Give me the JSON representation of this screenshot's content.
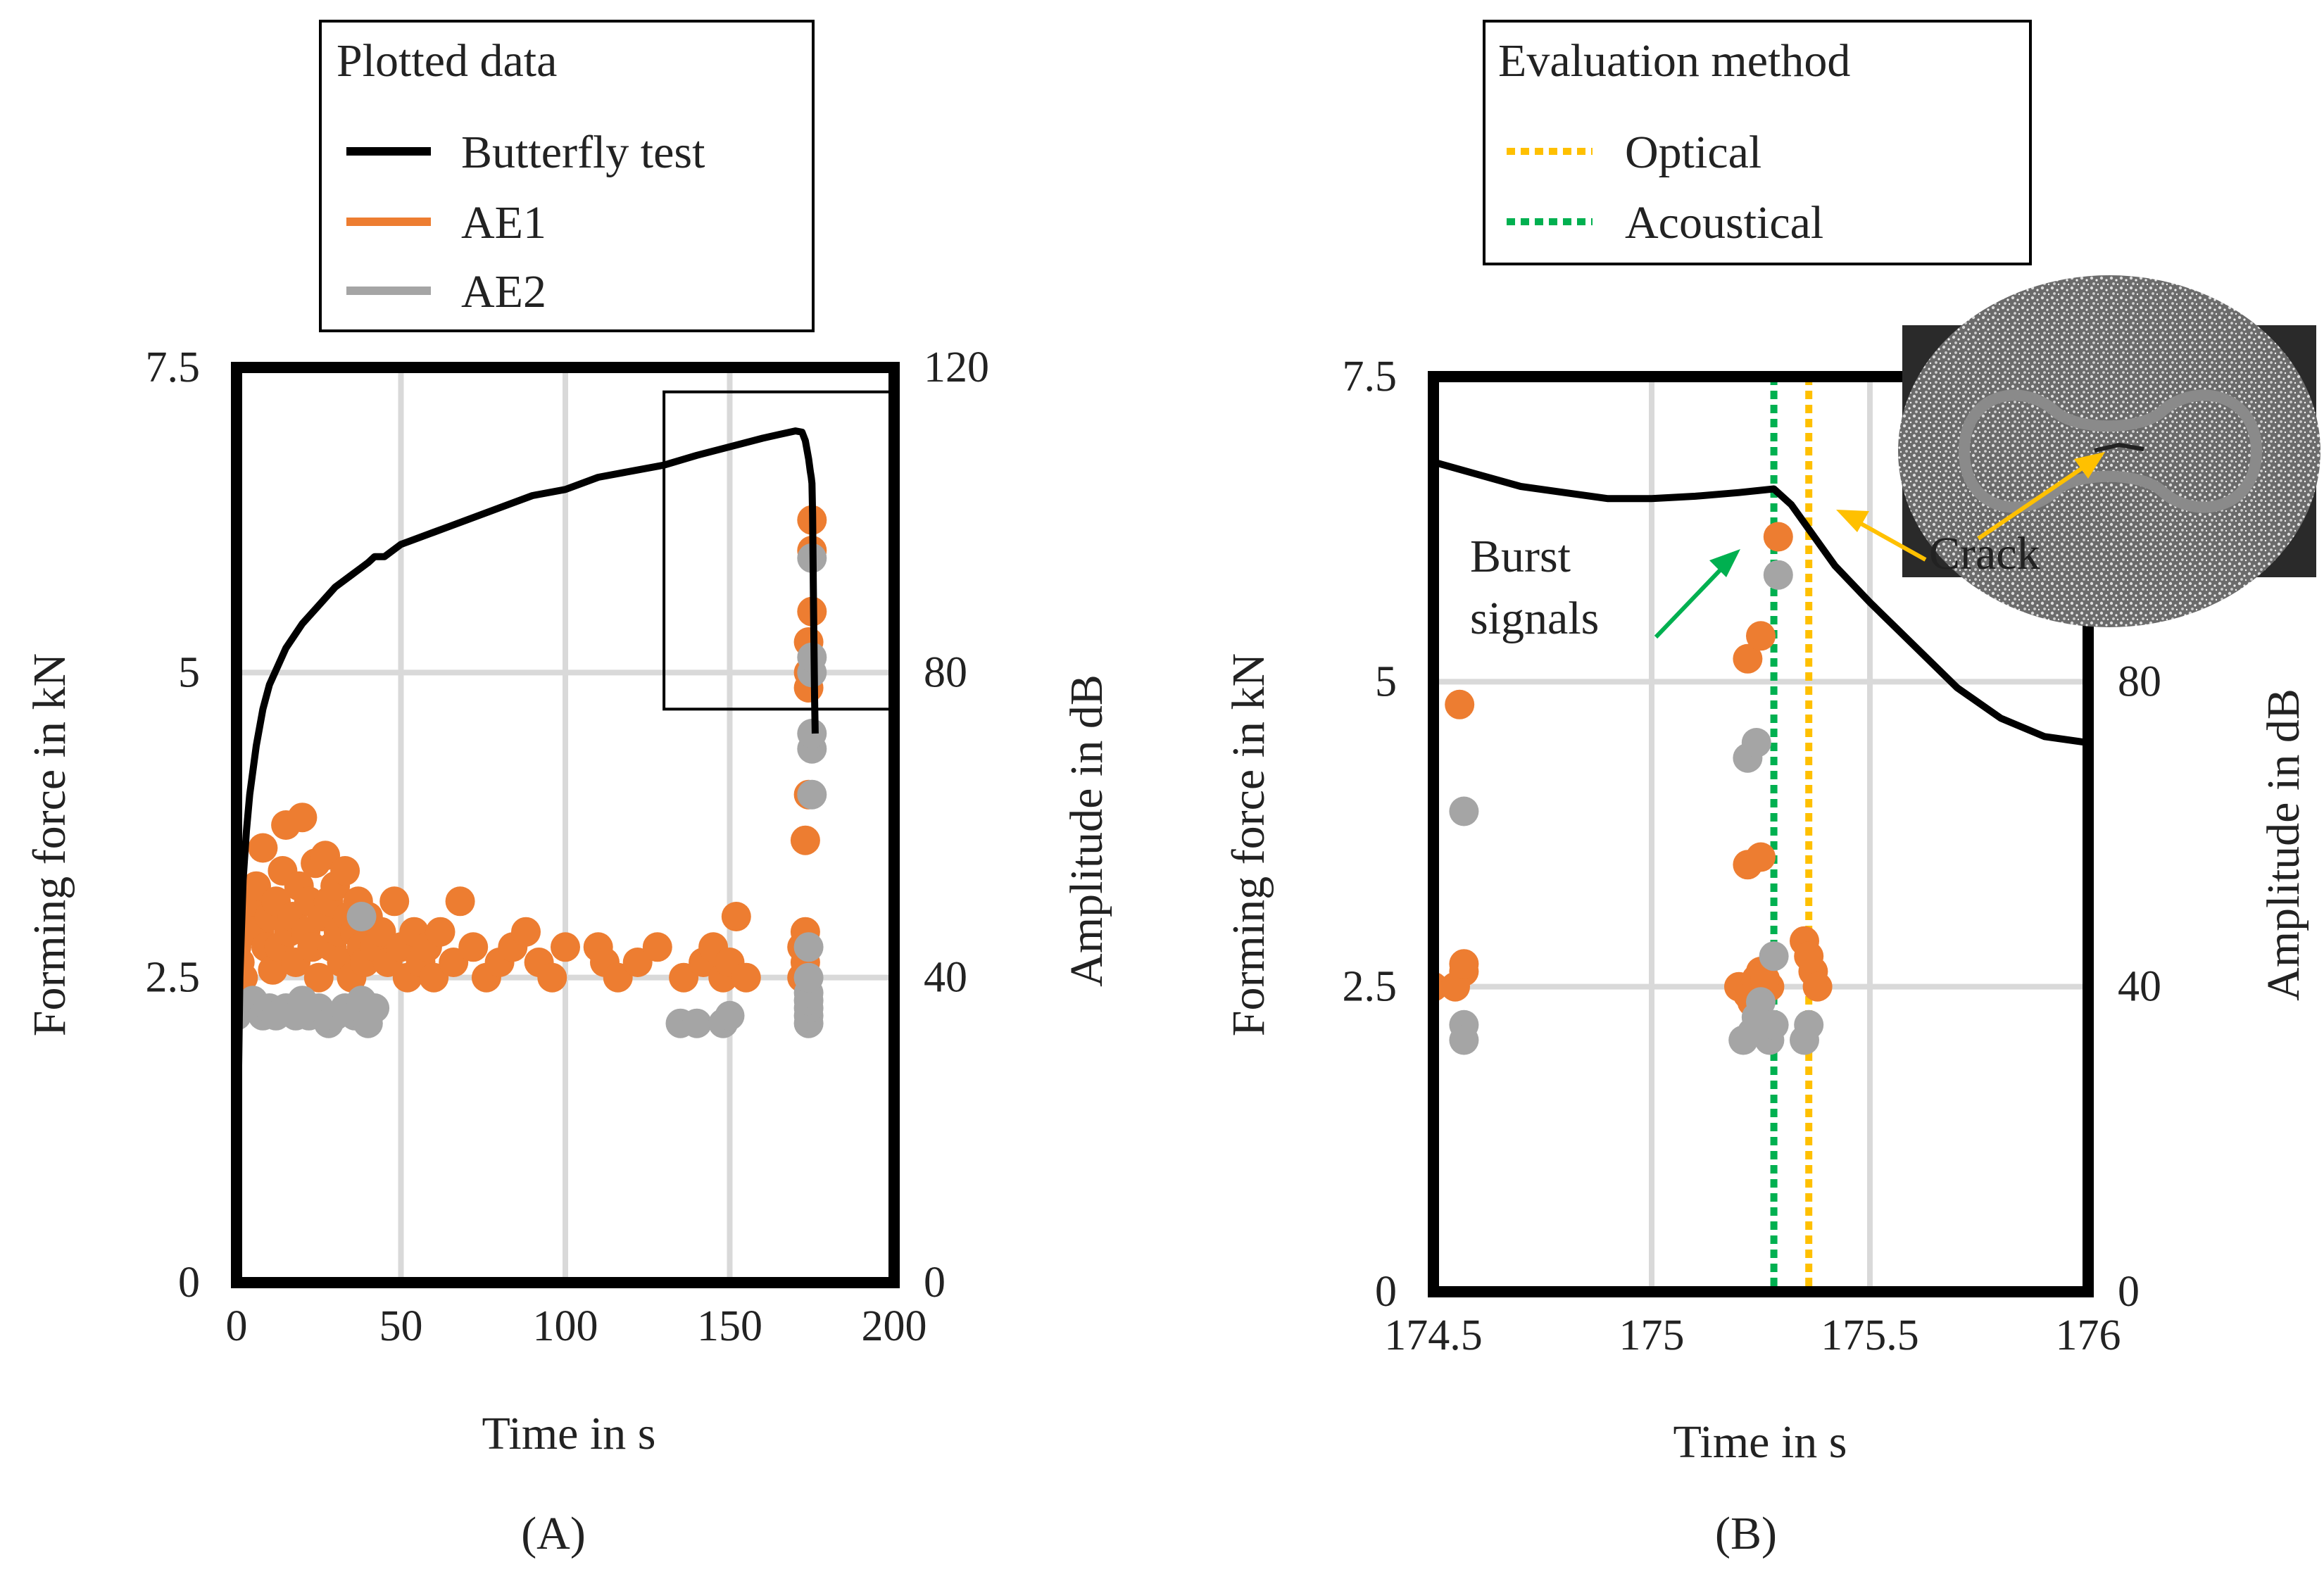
{
  "colors": {
    "force": "#000000",
    "ae1": "#ED7D31",
    "ae2": "#A5A5A5",
    "optical": "#FFC000",
    "acoustical": "#00B050",
    "grid": "#D9D9D9",
    "annotation_green": "#00B050",
    "annotation_gold": "#BF8F00"
  },
  "chart_data": [
    {
      "type": "scatter",
      "panel_label": "(A)",
      "xlabel": "Time in s",
      "ylabel_left": "Forming force in kN",
      "ylabel_right": "Amplitude in dB",
      "xlim": [
        0,
        200
      ],
      "ylim_left": [
        0,
        7.5
      ],
      "ylim_right": [
        0,
        120
      ],
      "x_ticks": [
        0,
        50,
        100,
        150,
        200
      ],
      "x_tick_labels": [
        "0",
        "50",
        "100",
        "150",
        "200"
      ],
      "y_left_ticks": [
        0,
        2.5,
        5,
        7.5
      ],
      "y_left_tick_labels": [
        "0",
        "2.5",
        "5",
        "7.5"
      ],
      "y_right_ticks": [
        0,
        40,
        80,
        120
      ],
      "y_right_tick_labels": [
        "0",
        "40",
        "80",
        "120"
      ],
      "grid": true,
      "legend": {
        "title": "Plotted data",
        "entries": [
          "Butterfly test",
          "AE1",
          "AE2"
        ],
        "position": "top"
      },
      "zoom_box": {
        "x": [
          130,
          200
        ],
        "y_left": [
          4.7,
          7.3
        ]
      },
      "series": [
        {
          "name": "Butterfly test",
          "kind": "line",
          "axis": "left",
          "x": [
            0,
            1,
            2,
            3,
            4,
            6,
            8,
            10,
            15,
            20,
            25,
            30,
            35,
            40,
            42,
            45,
            50,
            60,
            70,
            80,
            90,
            100,
            110,
            120,
            130,
            140,
            150,
            160,
            165,
            170,
            172,
            173,
            174,
            174.5,
            174.8,
            175,
            175.2,
            175.5,
            175.8,
            176
          ],
          "y": [
            0.5,
            2.5,
            3.3,
            3.7,
            4.0,
            4.4,
            4.7,
            4.9,
            5.2,
            5.4,
            5.55,
            5.7,
            5.8,
            5.9,
            5.95,
            5.95,
            6.05,
            6.15,
            6.25,
            6.35,
            6.45,
            6.5,
            6.6,
            6.65,
            6.7,
            6.78,
            6.85,
            6.92,
            6.95,
            6.98,
            6.97,
            6.9,
            6.75,
            6.65,
            6.6,
            6.55,
            6.3,
            5.5,
            4.8,
            4.5
          ]
        },
        {
          "name": "AE1",
          "kind": "scatter",
          "axis": "right",
          "points": [
            [
              0,
              44
            ],
            [
              1,
              42
            ],
            [
              2,
              40
            ],
            [
              3,
              46
            ],
            [
              4,
              48
            ],
            [
              5,
              50
            ],
            [
              6,
              52
            ],
            [
              7,
              46
            ],
            [
              8,
              57
            ],
            [
              9,
              44
            ],
            [
              10,
              48
            ],
            [
              11,
              41
            ],
            [
              12,
              50
            ],
            [
              13,
              44
            ],
            [
              14,
              54
            ],
            [
              15,
              60
            ],
            [
              16,
              46
            ],
            [
              17,
              48
            ],
            [
              18,
              42
            ],
            [
              19,
              52
            ],
            [
              20,
              61
            ],
            [
              21,
              46
            ],
            [
              22,
              50
            ],
            [
              23,
              44
            ],
            [
              24,
              55
            ],
            [
              25,
              40
            ],
            [
              26,
              48
            ],
            [
              27,
              56
            ],
            [
              28,
              50
            ],
            [
              29,
              44
            ],
            [
              30,
              52
            ],
            [
              31,
              46
            ],
            [
              32,
              42
            ],
            [
              33,
              54
            ],
            [
              34,
              48
            ],
            [
              35,
              40
            ],
            [
              36,
              46
            ],
            [
              37,
              50
            ],
            [
              38,
              44
            ],
            [
              39,
              42
            ],
            [
              40,
              48
            ],
            [
              42,
              44
            ],
            [
              44,
              46
            ],
            [
              46,
              42
            ],
            [
              48,
              50
            ],
            [
              50,
              44
            ],
            [
              52,
              40
            ],
            [
              54,
              46
            ],
            [
              56,
              42
            ],
            [
              58,
              44
            ],
            [
              60,
              40
            ],
            [
              62,
              46
            ],
            [
              66,
              42
            ],
            [
              68,
              50
            ],
            [
              72,
              44
            ],
            [
              76,
              40
            ],
            [
              80,
              42
            ],
            [
              84,
              44
            ],
            [
              88,
              46
            ],
            [
              92,
              42
            ],
            [
              96,
              40
            ],
            [
              100,
              44
            ],
            [
              110,
              44
            ],
            [
              112,
              42
            ],
            [
              116,
              40
            ],
            [
              122,
              42
            ],
            [
              128,
              44
            ],
            [
              136,
              40
            ],
            [
              142,
              42
            ],
            [
              145,
              44
            ],
            [
              148,
              40
            ],
            [
              150,
              42
            ],
            [
              152,
              48
            ],
            [
              155,
              40
            ],
            [
              172,
              40
            ],
            [
              172,
              44
            ],
            [
              173,
              42
            ],
            [
              173,
              46
            ],
            [
              173,
              58
            ],
            [
              174,
              64
            ],
            [
              174,
              78
            ],
            [
              174,
              80
            ],
            [
              174,
              84
            ],
            [
              175,
              88
            ],
            [
              175,
              96
            ],
            [
              175,
              100
            ]
          ]
        },
        {
          "name": "AE2",
          "kind": "scatter",
          "axis": "right",
          "points": [
            [
              0,
              35
            ],
            [
              2,
              36
            ],
            [
              5,
              37
            ],
            [
              8,
              35
            ],
            [
              10,
              36
            ],
            [
              12,
              35
            ],
            [
              15,
              36
            ],
            [
              18,
              35
            ],
            [
              20,
              37
            ],
            [
              22,
              35
            ],
            [
              25,
              36
            ],
            [
              28,
              34
            ],
            [
              30,
              35
            ],
            [
              33,
              36
            ],
            [
              36,
              35
            ],
            [
              38,
              37
            ],
            [
              38,
              48
            ],
            [
              40,
              34
            ],
            [
              42,
              36
            ],
            [
              135,
              34
            ],
            [
              140,
              34
            ],
            [
              148,
              34
            ],
            [
              150,
              35
            ],
            [
              174,
              34
            ],
            [
              174,
              35
            ],
            [
              174,
              36
            ],
            [
              174,
              37
            ],
            [
              174,
              38
            ],
            [
              174,
              40
            ],
            [
              174,
              44
            ],
            [
              175,
              64
            ],
            [
              175,
              70
            ],
            [
              175,
              72
            ],
            [
              175,
              80
            ],
            [
              175,
              82
            ],
            [
              175,
              95
            ]
          ]
        }
      ]
    },
    {
      "type": "scatter",
      "panel_label": "(B)",
      "xlabel": "Time in s",
      "ylabel_left": "Forming force in kN",
      "ylabel_right": "Amplitude in dB",
      "xlim": [
        174.5,
        176
      ],
      "ylim_left": [
        0,
        7.5
      ],
      "ylim_right": [
        0,
        120
      ],
      "x_ticks": [
        174.5,
        175,
        175.5,
        176
      ],
      "x_tick_labels": [
        "174.5",
        "175",
        "175.5",
        "176"
      ],
      "y_left_ticks": [
        0,
        2.5,
        5,
        7.5
      ],
      "y_left_tick_labels": [
        "0",
        "2.5",
        "5",
        "7.5"
      ],
      "y_right_ticks": [
        0,
        40,
        80
      ],
      "y_right_tick_labels": [
        "0",
        "40",
        "80"
      ],
      "grid": true,
      "legend": {
        "title": "Evaluation method",
        "entries": [
          "Optical",
          "Acoustical"
        ],
        "position": "top"
      },
      "vlines": [
        {
          "name": "Acoustical",
          "x": 175.28
        },
        {
          "name": "Optical",
          "x": 175.36
        }
      ],
      "annotations": [
        {
          "text": "Burst signals",
          "lines": [
            "Burst",
            "signals"
          ],
          "x": 174.62,
          "y_left": 5.8
        },
        {
          "text": "Crack",
          "x": 175.45,
          "y_left": 6.1
        }
      ],
      "inset": {
        "description": "optical camera view of butterfly specimen",
        "position": "top-right"
      },
      "series": [
        {
          "name": "Butterfly test",
          "kind": "line",
          "axis": "left",
          "x": [
            174.5,
            174.6,
            174.7,
            174.8,
            174.9,
            175.0,
            175.1,
            175.2,
            175.28,
            175.32,
            175.36,
            175.42,
            175.5,
            175.6,
            175.7,
            175.8,
            175.9,
            176.0
          ],
          "y": [
            6.8,
            6.7,
            6.6,
            6.55,
            6.5,
            6.5,
            6.52,
            6.55,
            6.58,
            6.45,
            6.25,
            5.95,
            5.65,
            5.3,
            4.95,
            4.7,
            4.55,
            4.5
          ]
        },
        {
          "name": "AE1",
          "kind": "scatter",
          "axis": "right",
          "points": [
            [
              174.5,
              40
            ],
            [
              174.55,
              40
            ],
            [
              174.57,
              42
            ],
            [
              174.57,
              43
            ],
            [
              174.56,
              77
            ],
            [
              175.2,
              40
            ],
            [
              175.22,
              39
            ],
            [
              175.23,
              38
            ],
            [
              175.24,
              41
            ],
            [
              175.25,
              42
            ],
            [
              175.27,
              40
            ],
            [
              175.26,
              41
            ],
            [
              175.22,
              56
            ],
            [
              175.25,
              57
            ],
            [
              175.22,
              83
            ],
            [
              175.25,
              86
            ],
            [
              175.29,
              99
            ],
            [
              175.35,
              46
            ],
            [
              175.36,
              44
            ],
            [
              175.37,
              42
            ],
            [
              175.38,
              40
            ]
          ]
        },
        {
          "name": "AE2",
          "kind": "scatter",
          "axis": "right",
          "points": [
            [
              174.57,
              35
            ],
            [
              174.57,
              33
            ],
            [
              174.57,
              63
            ],
            [
              175.21,
              33
            ],
            [
              175.23,
              34
            ],
            [
              175.24,
              36
            ],
            [
              175.25,
              38
            ],
            [
              175.26,
              35
            ],
            [
              175.27,
              33
            ],
            [
              175.28,
              35
            ],
            [
              175.28,
              44
            ],
            [
              175.22,
              70
            ],
            [
              175.24,
              72
            ],
            [
              175.29,
              94
            ],
            [
              175.35,
              33
            ],
            [
              175.36,
              35
            ]
          ]
        }
      ]
    }
  ]
}
